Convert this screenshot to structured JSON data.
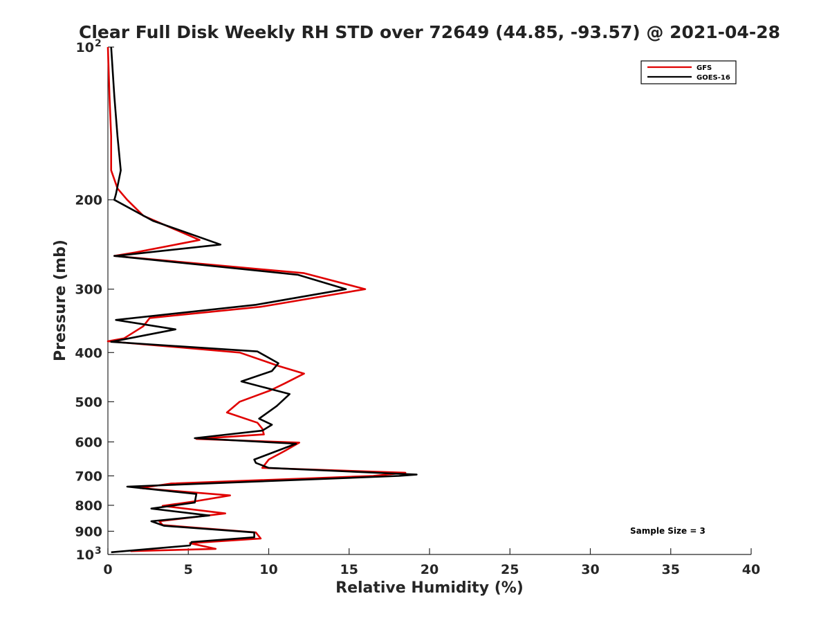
{
  "chart_data": {
    "type": "line",
    "title": "Clear Full Disk Weekly RH STD over 72649 (44.85, -93.57) @ 2021-04-28",
    "xlabel": "Relative Humidity (%)",
    "ylabel": "Pressure (mb)",
    "xlim": [
      0,
      40
    ],
    "ylim": [
      100,
      1000
    ],
    "y_scale": "log",
    "y_reversed": true,
    "grid": false,
    "legend_position": "top-right",
    "x_ticks": [
      "0",
      "5",
      "10",
      "15",
      "20",
      "25",
      "30",
      "35",
      "40"
    ],
    "y_ticks": [
      {
        "value": 100,
        "base": "10",
        "exp": "2"
      },
      {
        "value": 200,
        "label": "200"
      },
      {
        "value": 300,
        "label": "300"
      },
      {
        "value": 400,
        "label": "400"
      },
      {
        "value": 500,
        "label": "500"
      },
      {
        "value": 600,
        "label": "600"
      },
      {
        "value": 700,
        "label": "700"
      },
      {
        "value": 800,
        "label": "800"
      },
      {
        "value": 900,
        "label": "900"
      },
      {
        "value": 1000,
        "base": "10",
        "exp": "3"
      }
    ],
    "annotation": "Sample Size = 3",
    "series": [
      {
        "name": "GFS",
        "color": "#e00000",
        "points": [
          [
            0.0,
            100
          ],
          [
            0.1,
            125
          ],
          [
            0.2,
            150
          ],
          [
            0.2,
            175
          ],
          [
            0.6,
            190
          ],
          [
            1.2,
            200
          ],
          [
            2.2,
            215
          ],
          [
            5.7,
            240
          ],
          [
            1.7,
            254
          ],
          [
            0.4,
            258
          ],
          [
            12.2,
            279
          ],
          [
            16.0,
            300
          ],
          [
            9.5,
            325
          ],
          [
            2.6,
            342
          ],
          [
            2.2,
            355
          ],
          [
            1.0,
            375
          ],
          [
            0.0,
            380
          ],
          [
            8.2,
            400
          ],
          [
            10.6,
            425
          ],
          [
            12.2,
            440
          ],
          [
            11.0,
            460
          ],
          [
            10.1,
            475
          ],
          [
            8.2,
            500
          ],
          [
            7.4,
            525
          ],
          [
            9.3,
            550
          ],
          [
            9.6,
            565
          ],
          [
            9.7,
            580
          ],
          [
            5.5,
            592
          ],
          [
            11.9,
            602
          ],
          [
            11.0,
            625
          ],
          [
            10.0,
            650
          ],
          [
            9.6,
            675
          ],
          [
            18.5,
            690
          ],
          [
            16.5,
            700
          ],
          [
            3.9,
            725
          ],
          [
            2.0,
            740
          ],
          [
            7.6,
            765
          ],
          [
            5.5,
            785
          ],
          [
            3.4,
            802
          ],
          [
            7.3,
            830
          ],
          [
            3.2,
            860
          ],
          [
            3.4,
            875
          ],
          [
            9.2,
            905
          ],
          [
            9.5,
            930
          ],
          [
            5.1,
            950
          ],
          [
            6.7,
            975
          ],
          [
            1.4,
            985
          ]
        ]
      },
      {
        "name": "GOES-16",
        "color": "#000000",
        "points": [
          [
            0.2,
            100
          ],
          [
            0.4,
            125
          ],
          [
            0.6,
            150
          ],
          [
            0.8,
            175
          ],
          [
            0.5,
            195
          ],
          [
            0.4,
            200
          ],
          [
            2.8,
            220
          ],
          [
            7.0,
            245
          ],
          [
            0.5,
            258
          ],
          [
            0.4,
            258
          ],
          [
            11.8,
            281
          ],
          [
            14.8,
            300
          ],
          [
            9.2,
            322
          ],
          [
            0.5,
            345
          ],
          [
            4.2,
            360
          ],
          [
            0.2,
            381
          ],
          [
            9.3,
            398
          ],
          [
            10.6,
            420
          ],
          [
            10.2,
            435
          ],
          [
            8.3,
            456
          ],
          [
            11.3,
            483
          ],
          [
            10.5,
            510
          ],
          [
            9.4,
            540
          ],
          [
            10.2,
            555
          ],
          [
            9.6,
            570
          ],
          [
            5.4,
            590
          ],
          [
            11.7,
            605
          ],
          [
            9.1,
            650
          ],
          [
            9.2,
            660
          ],
          [
            10.0,
            675
          ],
          [
            19.2,
            696
          ],
          [
            18.1,
            700
          ],
          [
            1.2,
            735
          ],
          [
            5.5,
            760
          ],
          [
            5.4,
            790
          ],
          [
            2.7,
            812
          ],
          [
            6.3,
            838
          ],
          [
            2.7,
            860
          ],
          [
            3.5,
            878
          ],
          [
            9.1,
            905
          ],
          [
            9.1,
            925
          ],
          [
            5.2,
            945
          ],
          [
            5.1,
            960
          ],
          [
            0.2,
            990
          ]
        ]
      }
    ]
  }
}
